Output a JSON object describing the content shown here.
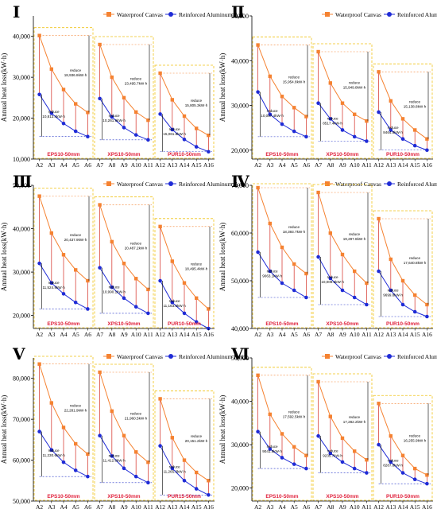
{
  "colors": {
    "canvas": "#f58231",
    "foil": "#1f2bd6",
    "frame": "#f0c419",
    "reduce_line": "#d9443c",
    "reduce_text": "#000000",
    "group_label": "#e0203a",
    "baseline": "#2030c8"
  },
  "icons": {
    "canvas_marker": "orange-square-icon",
    "foil_marker": "blue-circle-icon"
  },
  "chart_data": [
    {
      "type": "line",
      "panel": "I",
      "ylabel": "Annual heat loss(kW·h)",
      "ylim": [
        10000,
        45000
      ],
      "yticks": [
        10000,
        20000,
        30000,
        40000
      ],
      "ytick_labels": [
        "10,000",
        "20,000",
        "30,000",
        "40,000"
      ],
      "legend": [
        "Waterproof Canvas",
        "Reinforced Aluminum Foil"
      ],
      "groups": [
        {
          "label": "EPS10-50mm",
          "categories": [
            "A2",
            "A3",
            "A4",
            "A5",
            "A6"
          ],
          "canvas": [
            40200,
            32000,
            27000,
            23500,
            21400
          ],
          "foil": [
            25800,
            21200,
            18700,
            16800,
            15500
          ],
          "reduce_canvas": "18,936.8kW·h",
          "reduce_foil": "10,813.4kW·h"
        },
        {
          "label": "XPS10-50mm",
          "categories": [
            "A7",
            "A8",
            "A9",
            "A10",
            "A11"
          ],
          "canvas": [
            38000,
            30000,
            25000,
            21500,
            19500
          ],
          "foil": [
            24800,
            20300,
            17700,
            15900,
            14700
          ],
          "reduce_canvas": "23,495.7kW·h",
          "reduce_foil": "10,261.9kW·h"
        },
        {
          "label": "PUR10-50mm",
          "categories": [
            "A12",
            "A13",
            "A14",
            "A15",
            "A16"
          ],
          "canvas": [
            31000,
            24500,
            20500,
            17500,
            15800
          ],
          "foil": [
            21000,
            17200,
            14800,
            13000,
            11800
          ],
          "reduce_canvas": "15,805.3kW·h",
          "reduce_foil": "15,061.8kW·h"
        }
      ]
    },
    {
      "type": "line",
      "panel": "II",
      "ylabel": "Annual heat loss(kW·h)",
      "ylim": [
        18000,
        50000
      ],
      "yticks": [
        20000,
        30000,
        40000,
        50000
      ],
      "ytick_labels": [
        "20,000",
        "30,000",
        "40,000",
        "50,000"
      ],
      "legend": [
        "Waterproof Canvas",
        "Reinforced Aluminum Foil"
      ],
      "groups": [
        {
          "label": "EPS10-50mm",
          "categories": [
            "A2",
            "A3",
            "A4",
            "A5",
            "A6"
          ],
          "canvas": [
            43500,
            36500,
            32000,
            29500,
            27500
          ],
          "foil": [
            33000,
            28000,
            25800,
            24200,
            23000
          ],
          "reduce_canvas": "15,954.8kW·h",
          "reduce_foil": "10,057.4kW·h"
        },
        {
          "label": "XPS10-50mm",
          "categories": [
            "A7",
            "A8",
            "A9",
            "A10",
            "A11"
          ],
          "canvas": [
            42000,
            35000,
            30500,
            28000,
            26500
          ],
          "foil": [
            30500,
            27000,
            24500,
            23000,
            22000
          ],
          "reduce_canvas": "15,949.8kW·h",
          "reduce_foil": "8517.4kW·h"
        },
        {
          "label": "PUR10-50mm",
          "categories": [
            "A12",
            "A13",
            "A14",
            "A15",
            "A16"
          ],
          "canvas": [
            37500,
            31000,
            27000,
            24500,
            22500
          ],
          "foil": [
            28500,
            24500,
            22500,
            21000,
            20000
          ],
          "reduce_canvas": "15,138.8kW·h",
          "reduce_foil": "8464.8kW·h"
        }
      ]
    },
    {
      "type": "line",
      "panel": "III",
      "ylabel": "Annual heat loss(kW·h)",
      "ylim": [
        17000,
        50000
      ],
      "yticks": [
        20000,
        30000,
        40000,
        50000
      ],
      "ytick_labels": [
        "20,000",
        "30,000",
        "40,000",
        "50,000"
      ],
      "legend": [
        "Waterproof Canvas",
        "Reinforced Aluminum Foil"
      ],
      "groups": [
        {
          "label": "EPS10-50mm",
          "categories": [
            "A2",
            "A3",
            "A4",
            "A5",
            "A6"
          ],
          "canvas": [
            47500,
            39000,
            34000,
            30500,
            28000
          ],
          "foil": [
            32000,
            27500,
            25000,
            23000,
            21500
          ],
          "reduce_canvas": "20,437.9kW·h",
          "reduce_foil": "11,524.8kW·h"
        },
        {
          "label": "XPS10-50mm",
          "categories": [
            "A7",
            "A8",
            "A9",
            "A10",
            "A11"
          ],
          "canvas": [
            45500,
            37000,
            32000,
            28500,
            26000
          ],
          "foil": [
            31000,
            26500,
            24000,
            22000,
            20500
          ],
          "reduce_canvas": "20,487.2kW·h",
          "reduce_foil": "10,990.1kW·h"
        },
        {
          "label": "PUR10-50mm",
          "categories": [
            "A12",
            "A13",
            "A14",
            "A15",
            "A16"
          ],
          "canvas": [
            40500,
            32500,
            27500,
            24000,
            21500
          ],
          "foil": [
            28000,
            23000,
            20500,
            18500,
            17000
          ],
          "reduce_canvas": "18,495.4kW·h",
          "reduce_foil": "11,163.8kW·h"
        }
      ]
    },
    {
      "type": "line",
      "panel": "IV",
      "ylabel": "Annual heat loss(kW·h)",
      "ylim": [
        40000,
        70000
      ],
      "yticks": [
        40000,
        50000,
        60000,
        70000
      ],
      "ytick_labels": [
        "40,000",
        "50,000",
        "60,000",
        "70,000"
      ],
      "legend": [
        "Waterproof Canvas",
        "Reinforced Aluminum Foil"
      ],
      "groups": [
        {
          "label": "EPS10-50mm",
          "categories": [
            "A2",
            "A3",
            "A4",
            "A5",
            "A6"
          ],
          "canvas": [
            69500,
            62000,
            57000,
            53500,
            51500
          ],
          "foil": [
            56000,
            52000,
            49500,
            48000,
            46500
          ],
          "reduce_canvas": "18,393.7kW·h",
          "reduce_foil": "9063.1kW·h"
        },
        {
          "label": "XPS10-50mm",
          "categories": [
            "A7",
            "A8",
            "A9",
            "A10",
            "A11"
          ],
          "canvas": [
            68500,
            60000,
            55500,
            52000,
            49500
          ],
          "foil": [
            55000,
            50500,
            48000,
            46500,
            45000
          ],
          "reduce_canvas": "19,297.8kW·h",
          "reduce_foil": "10,009.6kW·h"
        },
        {
          "label": "PUR10-50mm",
          "categories": [
            "A12",
            "A13",
            "A14",
            "A15",
            "A16"
          ],
          "canvas": [
            63000,
            54500,
            50000,
            47000,
            45000
          ],
          "foil": [
            52000,
            48000,
            45000,
            43500,
            42500
          ],
          "reduce_canvas": "17,640.8kW·h",
          "reduce_foil": "9699.8kW·h"
        }
      ]
    },
    {
      "type": "line",
      "panel": "V",
      "ylabel": "Annual heat loss(kW·h)",
      "ylim": [
        50000,
        85000
      ],
      "yticks": [
        50000,
        60000,
        70000,
        80000
      ],
      "ytick_labels": [
        "50,000",
        "60,000",
        "70,000",
        "80,000"
      ],
      "legend": [
        "Waterproof Canvas",
        "Reinforced Aluminum Foil"
      ],
      "groups": [
        {
          "label": "EPS10-50mm",
          "categories": [
            "A2",
            "A3",
            "A4",
            "A5",
            "A6"
          ],
          "canvas": [
            83500,
            74000,
            68000,
            64000,
            61500
          ],
          "foil": [
            67000,
            62500,
            59500,
            57500,
            56000
          ],
          "reduce_canvas": "22,281.9kW·h",
          "reduce_foil": "11,230.6kW·h"
        },
        {
          "label": "XPS10-50mm",
          "categories": [
            "A7",
            "A8",
            "A9",
            "A10",
            "A11"
          ],
          "canvas": [
            81500,
            72000,
            66000,
            62000,
            59500
          ],
          "foil": [
            66000,
            61000,
            58000,
            56000,
            54500
          ],
          "reduce_canvas": "21,960.5kW·h",
          "reduce_foil": "11,412.6kW·h"
        },
        {
          "label": "PUR15-50mm",
          "categories": [
            "A12",
            "A13",
            "A14",
            "A15",
            "A16"
          ],
          "canvas": [
            75000,
            65500,
            60000,
            57000,
            55000
          ],
          "foil": [
            63500,
            58000,
            55000,
            53000,
            51500
          ],
          "reduce_canvas": "20,151.2kW·h",
          "reduce_foil": "11,265.3kW·h"
        }
      ]
    },
    {
      "type": "line",
      "panel": "VI",
      "ylabel": "Annual heat loss(kW·h)",
      "ylim": [
        17000,
        50000
      ],
      "yticks": [
        20000,
        30000,
        40000,
        50000
      ],
      "ytick_labels": [
        "20,000",
        "30,000",
        "40,000",
        "50,000"
      ],
      "legend": [
        "Waterproof Canvas",
        "Reinforced Aluminum Foil"
      ],
      "groups": [
        {
          "label": "EPS10-50mm",
          "categories": [
            "A2",
            "A3",
            "A4",
            "A5",
            "A6"
          ],
          "canvas": [
            46000,
            37000,
            32500,
            29500,
            27500
          ],
          "foil": [
            33000,
            29000,
            27000,
            25500,
            24500
          ],
          "reduce_canvas": "17,592.5kW·h",
          "reduce_foil": "9041.8kW·h"
        },
        {
          "label": "XPS10-50mm",
          "categories": [
            "A7",
            "A8",
            "A9",
            "A10",
            "A11"
          ],
          "canvas": [
            44500,
            36500,
            31500,
            28500,
            26500
          ],
          "foil": [
            32000,
            28000,
            26000,
            24500,
            23500
          ],
          "reduce_canvas": "17,282.2kW·h",
          "reduce_foil": "9235.7kW·h"
        },
        {
          "label": "PUR10-50mm",
          "categories": [
            "A12",
            "A13",
            "A14",
            "A15",
            "A16"
          ],
          "canvas": [
            39500,
            32000,
            27500,
            24500,
            23000
          ],
          "foil": [
            30000,
            26000,
            23500,
            22000,
            21000
          ],
          "reduce_canvas": "16,255.9kW·h",
          "reduce_foil": "8287.8kW·h"
        }
      ]
    }
  ]
}
